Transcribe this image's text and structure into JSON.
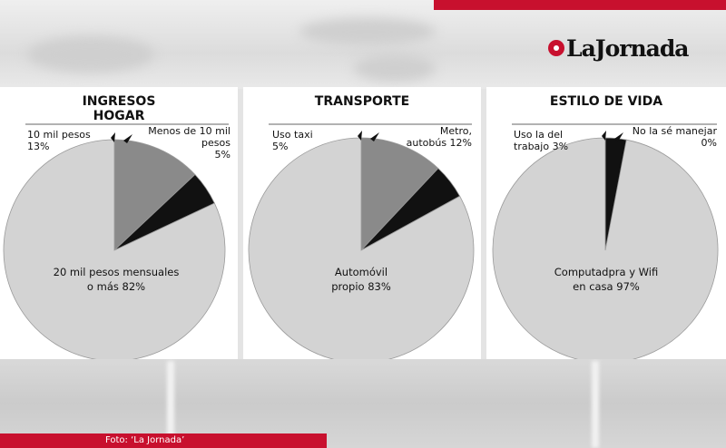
{
  "brand": {
    "name": "LaJornada"
  },
  "caption": "Foto: ‘La Jornada’",
  "colors": {
    "accent_red": "#c8102e",
    "slice_main": "#d3d3d3",
    "slice_mid": "#8a8a8a",
    "slice_small": "#111111"
  },
  "chart_data": [
    {
      "type": "pie",
      "title": "INGRESOS HOGAR",
      "title_lines": [
        "INGRESOS",
        "HOGAR"
      ],
      "slices": [
        {
          "label": "20 mil pesos mensuales o más",
          "value": 82,
          "display": "82%",
          "color": "#d3d3d3"
        },
        {
          "label": "10 mil pesos",
          "value": 13,
          "display": "13%",
          "color": "#8a8a8a"
        },
        {
          "label": "Menos de 10 mil pesos",
          "value": 5,
          "display": "5%",
          "color": "#111111"
        }
      ],
      "label_text": {
        "main": [
          "20 mil pesos mensuales",
          "o más 82%"
        ],
        "mid": [
          "10 mil pesos",
          "13%"
        ],
        "small": [
          "Menos de 10 mil",
          "pesos",
          "5%"
        ]
      }
    },
    {
      "type": "pie",
      "title": "TRANSPORTE",
      "title_lines": [
        "TRANSPORTE"
      ],
      "slices": [
        {
          "label": "Automóvil propio",
          "value": 83,
          "display": "83%",
          "color": "#d3d3d3"
        },
        {
          "label": "Metro, autobús",
          "value": 12,
          "display": "12%",
          "color": "#8a8a8a"
        },
        {
          "label": "Uso taxi",
          "value": 5,
          "display": "5%",
          "color": "#111111"
        }
      ],
      "label_text": {
        "main": [
          "Automóvil",
          "propio 83%"
        ],
        "left": [
          "Uso taxi",
          "5%"
        ],
        "right": [
          "Metro,",
          "autobús 12%"
        ]
      }
    },
    {
      "type": "pie",
      "title": "ESTILO DE VIDA",
      "title_lines": [
        "ESTILO DE VIDA"
      ],
      "slices": [
        {
          "label": "Computadpra y Wifi en casa",
          "value": 97,
          "display": "97%",
          "color": "#d3d3d3"
        },
        {
          "label": "Uso la del trabajo",
          "value": 3,
          "display": "3%",
          "color": "#111111"
        },
        {
          "label": "No la sé manejar",
          "value": 0,
          "display": "0%",
          "color": "#111111"
        }
      ],
      "label_text": {
        "main": [
          "Computadpra y Wifi",
          "en casa 97%"
        ],
        "left": [
          "Uso la del",
          "trabajo 3%"
        ],
        "right": [
          "No la sé manejar",
          "0%"
        ]
      }
    }
  ]
}
